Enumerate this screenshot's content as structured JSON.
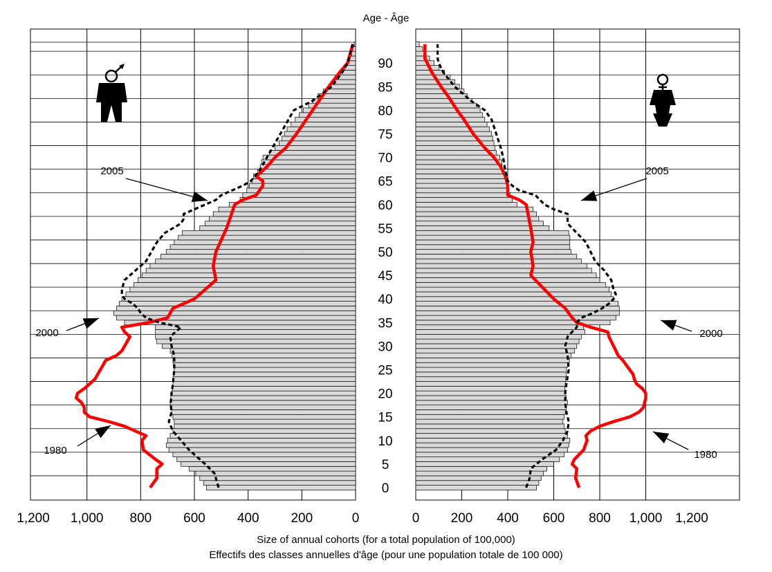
{
  "chart_data": {
    "type": "population-pyramid",
    "title": "Age - Âge",
    "xlabel": [
      "Size of annual cohorts (for a total population of 100,000)",
      "Effectifs des classes annuelles d'âge (pour une population totale de 100 000)"
    ],
    "x_ticks": [
      "1,200",
      "1,000",
      "800",
      "600",
      "400",
      "200",
      "0",
      "0",
      "200",
      "400",
      "600",
      "800",
      "1,000",
      "1,200"
    ],
    "xlim": [
      0,
      1200
    ],
    "age_ticks": [
      0,
      5,
      10,
      15,
      20,
      25,
      30,
      35,
      40,
      45,
      50,
      55,
      60,
      65,
      70,
      75,
      80,
      85,
      90
    ],
    "ylim": [
      0,
      94
    ],
    "grid": true,
    "panels": [
      "male",
      "female"
    ],
    "bars": {
      "name": "2000",
      "ages": [
        0,
        1,
        2,
        3,
        4,
        5,
        6,
        7,
        8,
        9,
        10,
        11,
        12,
        13,
        14,
        15,
        16,
        17,
        18,
        19,
        20,
        21,
        22,
        23,
        24,
        25,
        26,
        27,
        28,
        29,
        30,
        31,
        32,
        33,
        34,
        35,
        36,
        37,
        38,
        39,
        40,
        41,
        42,
        43,
        44,
        45,
        46,
        47,
        48,
        49,
        50,
        51,
        52,
        53,
        54,
        55,
        56,
        57,
        58,
        59,
        60,
        61,
        62,
        63,
        64,
        65,
        66,
        67,
        68,
        69,
        70,
        71,
        72,
        73,
        74,
        75,
        76,
        77,
        78,
        79,
        80,
        81,
        82,
        83,
        84,
        85,
        86,
        87,
        88,
        89,
        90,
        91,
        92,
        93,
        94
      ],
      "male": [
        555,
        565,
        580,
        595,
        620,
        650,
        665,
        680,
        695,
        705,
        700,
        690,
        680,
        675,
        675,
        680,
        685,
        690,
        690,
        688,
        685,
        682,
        680,
        680,
        678,
        675,
        678,
        680,
        683,
        690,
        720,
        740,
        745,
        745,
        745,
        860,
        890,
        900,
        890,
        880,
        870,
        855,
        840,
        825,
        810,
        795,
        780,
        765,
        745,
        725,
        705,
        690,
        675,
        660,
        645,
        580,
        560,
        545,
        530,
        510,
        470,
        430,
        420,
        405,
        395,
        385,
        380,
        365,
        355,
        350,
        345,
        320,
        300,
        285,
        275,
        265,
        255,
        240,
        225,
        210,
        195,
        175,
        160,
        140,
        120,
        95,
        85,
        70,
        55,
        40,
        30,
        22,
        15,
        10,
        5
      ],
      "female": [
        525,
        535,
        545,
        555,
        570,
        600,
        625,
        645,
        660,
        665,
        670,
        660,
        650,
        645,
        640,
        645,
        650,
        655,
        660,
        655,
        650,
        648,
        650,
        652,
        655,
        655,
        660,
        668,
        675,
        690,
        700,
        710,
        720,
        735,
        730,
        845,
        870,
        885,
        885,
        880,
        860,
        850,
        840,
        825,
        800,
        785,
        765,
        745,
        720,
        700,
        675,
        670,
        670,
        670,
        665,
        580,
        555,
        535,
        525,
        510,
        440,
        420,
        410,
        400,
        395,
        395,
        385,
        380,
        375,
        375,
        365,
        350,
        345,
        340,
        335,
        330,
        320,
        310,
        300,
        290,
        280,
        265,
        245,
        225,
        210,
        190,
        170,
        150,
        125,
        100,
        80,
        60,
        45,
        30,
        15
      ]
    },
    "lines": [
      {
        "name": "1980",
        "color": "#ff0000",
        "style": "solid",
        "male": [
          [
            0,
            765
          ],
          [
            2,
            740
          ],
          [
            4,
            740
          ],
          [
            5,
            720
          ],
          [
            6,
            745
          ],
          [
            8,
            790
          ],
          [
            10,
            795
          ],
          [
            11,
            780
          ],
          [
            12,
            820
          ],
          [
            13,
            860
          ],
          [
            14,
            920
          ],
          [
            15,
            990
          ],
          [
            16,
            1010
          ],
          [
            17,
            1010
          ],
          [
            18,
            1020
          ],
          [
            19,
            1040
          ],
          [
            20,
            1035
          ],
          [
            21,
            1010
          ],
          [
            22,
            990
          ],
          [
            23,
            970
          ],
          [
            24,
            960
          ],
          [
            25,
            950
          ],
          [
            27,
            930
          ],
          [
            28,
            890
          ],
          [
            29,
            870
          ],
          [
            30,
            860
          ],
          [
            31,
            850
          ],
          [
            32,
            840
          ],
          [
            33,
            860
          ],
          [
            34,
            870
          ],
          [
            35,
            770
          ],
          [
            36,
            700
          ],
          [
            38,
            680
          ],
          [
            40,
            600
          ],
          [
            42,
            560
          ],
          [
            44,
            520
          ],
          [
            47,
            530
          ],
          [
            50,
            520
          ],
          [
            55,
            480
          ],
          [
            60,
            450
          ],
          [
            61,
            420
          ],
          [
            62,
            370
          ],
          [
            64,
            345
          ],
          [
            65,
            345
          ],
          [
            66,
            370
          ],
          [
            68,
            330
          ],
          [
            70,
            300
          ],
          [
            72,
            260
          ],
          [
            75,
            220
          ],
          [
            80,
            160
          ],
          [
            85,
            100
          ],
          [
            88,
            60
          ],
          [
            90,
            30
          ],
          [
            94,
            10
          ]
        ],
        "female": [
          [
            0,
            710
          ],
          [
            2,
            695
          ],
          [
            4,
            700
          ],
          [
            5,
            680
          ],
          [
            6,
            690
          ],
          [
            8,
            730
          ],
          [
            10,
            745
          ],
          [
            11,
            740
          ],
          [
            12,
            760
          ],
          [
            13,
            800
          ],
          [
            14,
            860
          ],
          [
            15,
            930
          ],
          [
            16,
            970
          ],
          [
            17,
            990
          ],
          [
            18,
            995
          ],
          [
            19,
            1000
          ],
          [
            20,
            1000
          ],
          [
            21,
            985
          ],
          [
            22,
            960
          ],
          [
            23,
            950
          ],
          [
            24,
            945
          ],
          [
            25,
            930
          ],
          [
            27,
            900
          ],
          [
            28,
            880
          ],
          [
            29,
            870
          ],
          [
            30,
            860
          ],
          [
            31,
            850
          ],
          [
            32,
            840
          ],
          [
            33,
            835
          ],
          [
            34,
            760
          ],
          [
            35,
            700
          ],
          [
            36,
            680
          ],
          [
            38,
            650
          ],
          [
            40,
            600
          ],
          [
            42,
            560
          ],
          [
            44,
            520
          ],
          [
            45,
            500
          ],
          [
            47,
            510
          ],
          [
            50,
            500
          ],
          [
            52,
            510
          ],
          [
            55,
            500
          ],
          [
            60,
            480
          ],
          [
            61,
            450
          ],
          [
            62,
            400
          ],
          [
            64,
            400
          ],
          [
            66,
            390
          ],
          [
            68,
            370
          ],
          [
            70,
            340
          ],
          [
            72,
            300
          ],
          [
            75,
            250
          ],
          [
            78,
            210
          ],
          [
            80,
            180
          ],
          [
            83,
            140
          ],
          [
            85,
            110
          ],
          [
            88,
            70
          ],
          [
            90,
            50
          ],
          [
            91,
            40
          ],
          [
            94,
            40
          ]
        ]
      },
      {
        "name": "2005",
        "color": "#000000",
        "style": "dotted",
        "male": [
          [
            0,
            510
          ],
          [
            1,
            515
          ],
          [
            2,
            520
          ],
          [
            3,
            525
          ],
          [
            5,
            560
          ],
          [
            6,
            580
          ],
          [
            8,
            620
          ],
          [
            10,
            650
          ],
          [
            12,
            680
          ],
          [
            14,
            695
          ],
          [
            15,
            690
          ],
          [
            16,
            685
          ],
          [
            18,
            688
          ],
          [
            20,
            685
          ],
          [
            22,
            680
          ],
          [
            25,
            675
          ],
          [
            28,
            675
          ],
          [
            30,
            685
          ],
          [
            32,
            690
          ],
          [
            33,
            670
          ],
          [
            34,
            650
          ],
          [
            35,
            730
          ],
          [
            36,
            780
          ],
          [
            37,
            800
          ],
          [
            38,
            810
          ],
          [
            39,
            830
          ],
          [
            40,
            860
          ],
          [
            41,
            870
          ],
          [
            42,
            870
          ],
          [
            44,
            860
          ],
          [
            46,
            820
          ],
          [
            48,
            780
          ],
          [
            50,
            760
          ],
          [
            52,
            740
          ],
          [
            54,
            710
          ],
          [
            55,
            680
          ],
          [
            56,
            650
          ],
          [
            57,
            640
          ],
          [
            58,
            640
          ],
          [
            59,
            600
          ],
          [
            60,
            560
          ],
          [
            61,
            520
          ],
          [
            62,
            500
          ],
          [
            63,
            460
          ],
          [
            64,
            420
          ],
          [
            65,
            390
          ],
          [
            67,
            360
          ],
          [
            70,
            330
          ],
          [
            72,
            310
          ],
          [
            75,
            280
          ],
          [
            78,
            250
          ],
          [
            80,
            230
          ],
          [
            82,
            160
          ],
          [
            85,
            90
          ],
          [
            88,
            50
          ],
          [
            90,
            30
          ],
          [
            94,
            10
          ]
        ],
        "female": [
          [
            0,
            480
          ],
          [
            2,
            495
          ],
          [
            4,
            500
          ],
          [
            6,
            550
          ],
          [
            8,
            610
          ],
          [
            10,
            640
          ],
          [
            12,
            660
          ],
          [
            14,
            665
          ],
          [
            15,
            660
          ],
          [
            16,
            655
          ],
          [
            18,
            650
          ],
          [
            20,
            650
          ],
          [
            22,
            655
          ],
          [
            25,
            665
          ],
          [
            28,
            660
          ],
          [
            30,
            650
          ],
          [
            32,
            660
          ],
          [
            33,
            680
          ],
          [
            34,
            700
          ],
          [
            35,
            700
          ],
          [
            36,
            720
          ],
          [
            37,
            770
          ],
          [
            38,
            810
          ],
          [
            39,
            840
          ],
          [
            40,
            860
          ],
          [
            41,
            870
          ],
          [
            42,
            860
          ],
          [
            44,
            850
          ],
          [
            46,
            820
          ],
          [
            48,
            780
          ],
          [
            50,
            760
          ],
          [
            52,
            740
          ],
          [
            54,
            700
          ],
          [
            55,
            680
          ],
          [
            56,
            660
          ],
          [
            57,
            660
          ],
          [
            58,
            660
          ],
          [
            59,
            600
          ],
          [
            60,
            560
          ],
          [
            62,
            520
          ],
          [
            63,
            450
          ],
          [
            64,
            420
          ],
          [
            65,
            400
          ],
          [
            67,
            390
          ],
          [
            70,
            380
          ],
          [
            72,
            370
          ],
          [
            75,
            350
          ],
          [
            78,
            330
          ],
          [
            80,
            300
          ],
          [
            82,
            240
          ],
          [
            85,
            170
          ],
          [
            88,
            120
          ],
          [
            90,
            100
          ],
          [
            91,
            95
          ],
          [
            94,
            95
          ]
        ]
      }
    ],
    "annotations": [
      {
        "text": "2005",
        "panel": "male"
      },
      {
        "text": "2000",
        "panel": "male"
      },
      {
        "text": "1980",
        "panel": "male"
      },
      {
        "text": "2005",
        "panel": "female"
      },
      {
        "text": "2000",
        "panel": "female"
      },
      {
        "text": "1980",
        "panel": "female"
      }
    ],
    "icons": [
      "male-icon",
      "female-icon"
    ]
  }
}
